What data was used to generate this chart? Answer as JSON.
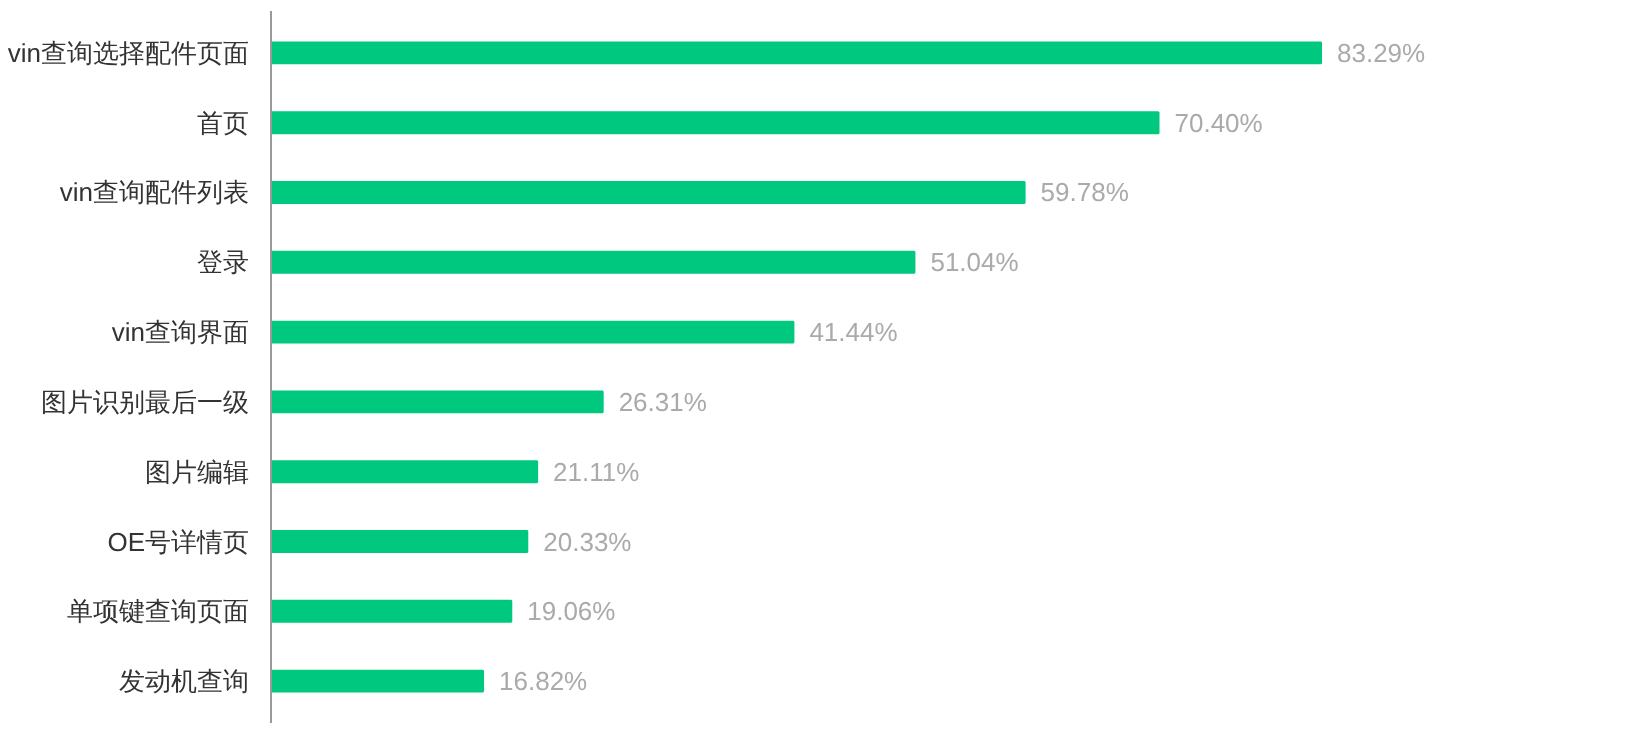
{
  "chart_data": {
    "type": "bar",
    "orientation": "horizontal",
    "categories": [
      "vin查询选择配件页面",
      "首页",
      "vin查询配件列表",
      "登录",
      "vin查询界面",
      "图片识别最后一级",
      "图片编辑",
      "OE号详情页",
      "单项键查询页面",
      "发动机查询"
    ],
    "values": [
      83.29,
      70.4,
      59.78,
      51.04,
      41.44,
      26.31,
      21.11,
      20.33,
      19.06,
      16.82
    ],
    "value_labels": [
      "83.29%",
      "70.40%",
      "59.78%",
      "51.04%",
      "41.44%",
      "26.31%",
      "21.11%",
      "20.33%",
      "19.06%",
      "16.82%"
    ],
    "color": "#00c97f",
    "grid": false
  }
}
